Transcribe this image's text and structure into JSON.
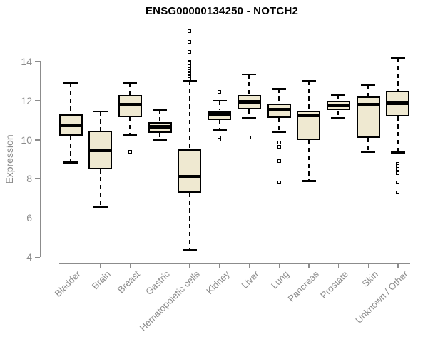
{
  "chart_data": {
    "type": "boxplot",
    "title": "ENSG00000134250 - NOTCH2",
    "xlabel": "",
    "ylabel": "Expression",
    "ylim": [
      4,
      14
    ],
    "yticks": [
      4,
      6,
      8,
      10,
      12,
      14
    ],
    "grid": false,
    "legend": false,
    "categories": [
      "Bladder",
      "Brain",
      "Breast",
      "Gastric",
      "Hematopoietic cells",
      "Kidney",
      "Liver",
      "Lung",
      "Pancreas",
      "Prostate",
      "Skin",
      "Unknown / Other"
    ],
    "boxes": [
      {
        "category": "Bladder",
        "whisker_low": 8.85,
        "q1": 10.2,
        "median": 10.75,
        "q3": 11.3,
        "whisker_high": 12.9,
        "outliers": []
      },
      {
        "category": "Brain",
        "whisker_low": 6.55,
        "q1": 8.5,
        "median": 9.45,
        "q3": 10.45,
        "whisker_high": 11.45,
        "outliers": []
      },
      {
        "category": "Breast",
        "whisker_low": 10.25,
        "q1": 11.15,
        "median": 11.8,
        "q3": 12.3,
        "whisker_high": 12.9,
        "outliers": [
          9.4
        ]
      },
      {
        "category": "Gastric",
        "whisker_low": 10.0,
        "q1": 10.35,
        "median": 10.65,
        "q3": 10.9,
        "whisker_high": 11.55,
        "outliers": []
      },
      {
        "category": "Hematopoietic cells",
        "whisker_low": 4.35,
        "q1": 7.3,
        "median": 8.1,
        "q3": 9.5,
        "whisker_high": 13.0,
        "outliers": [
          15.55,
          15.0,
          14.5,
          14.0,
          13.95,
          13.9,
          13.8,
          13.75,
          13.7,
          13.6,
          13.55,
          13.5,
          13.4,
          13.35,
          13.25,
          13.2,
          13.1
        ]
      },
      {
        "category": "Kidney",
        "whisker_low": 10.5,
        "q1": 11.0,
        "median": 11.3,
        "q3": 11.5,
        "whisker_high": 12.0,
        "outliers": [
          12.45,
          10.1,
          10.0
        ]
      },
      {
        "category": "Liver",
        "whisker_low": 11.1,
        "q1": 11.55,
        "median": 11.95,
        "q3": 12.3,
        "whisker_high": 13.35,
        "outliers": [
          10.1
        ]
      },
      {
        "category": "Lung",
        "whisker_low": 10.4,
        "q1": 11.1,
        "median": 11.55,
        "q3": 11.85,
        "whisker_high": 12.6,
        "outliers": [
          9.85,
          9.65,
          8.9,
          7.8
        ]
      },
      {
        "category": "Pancreas",
        "whisker_low": 7.9,
        "q1": 10.0,
        "median": 11.25,
        "q3": 11.5,
        "whisker_high": 13.0,
        "outliers": []
      },
      {
        "category": "Prostate",
        "whisker_low": 11.1,
        "q1": 11.5,
        "median": 11.75,
        "q3": 12.0,
        "whisker_high": 12.3,
        "outliers": []
      },
      {
        "category": "Skin",
        "whisker_low": 9.4,
        "q1": 10.1,
        "median": 11.8,
        "q3": 12.2,
        "whisker_high": 12.8,
        "outliers": []
      },
      {
        "category": "Unknown / Other",
        "whisker_low": 9.35,
        "q1": 11.2,
        "median": 11.85,
        "q3": 12.5,
        "whisker_high": 14.2,
        "outliers": [
          8.75,
          8.65,
          8.5,
          8.3,
          7.8,
          7.3
        ]
      }
    ],
    "colors": {
      "box_fill": "#EFE9D1",
      "box_border": "#000000",
      "median": "#000000",
      "whisker": "#000000",
      "axis": "#8C8C8C",
      "tick_label": "#8C8C8C",
      "title": "#000000",
      "background": "#FFFFFF"
    }
  }
}
